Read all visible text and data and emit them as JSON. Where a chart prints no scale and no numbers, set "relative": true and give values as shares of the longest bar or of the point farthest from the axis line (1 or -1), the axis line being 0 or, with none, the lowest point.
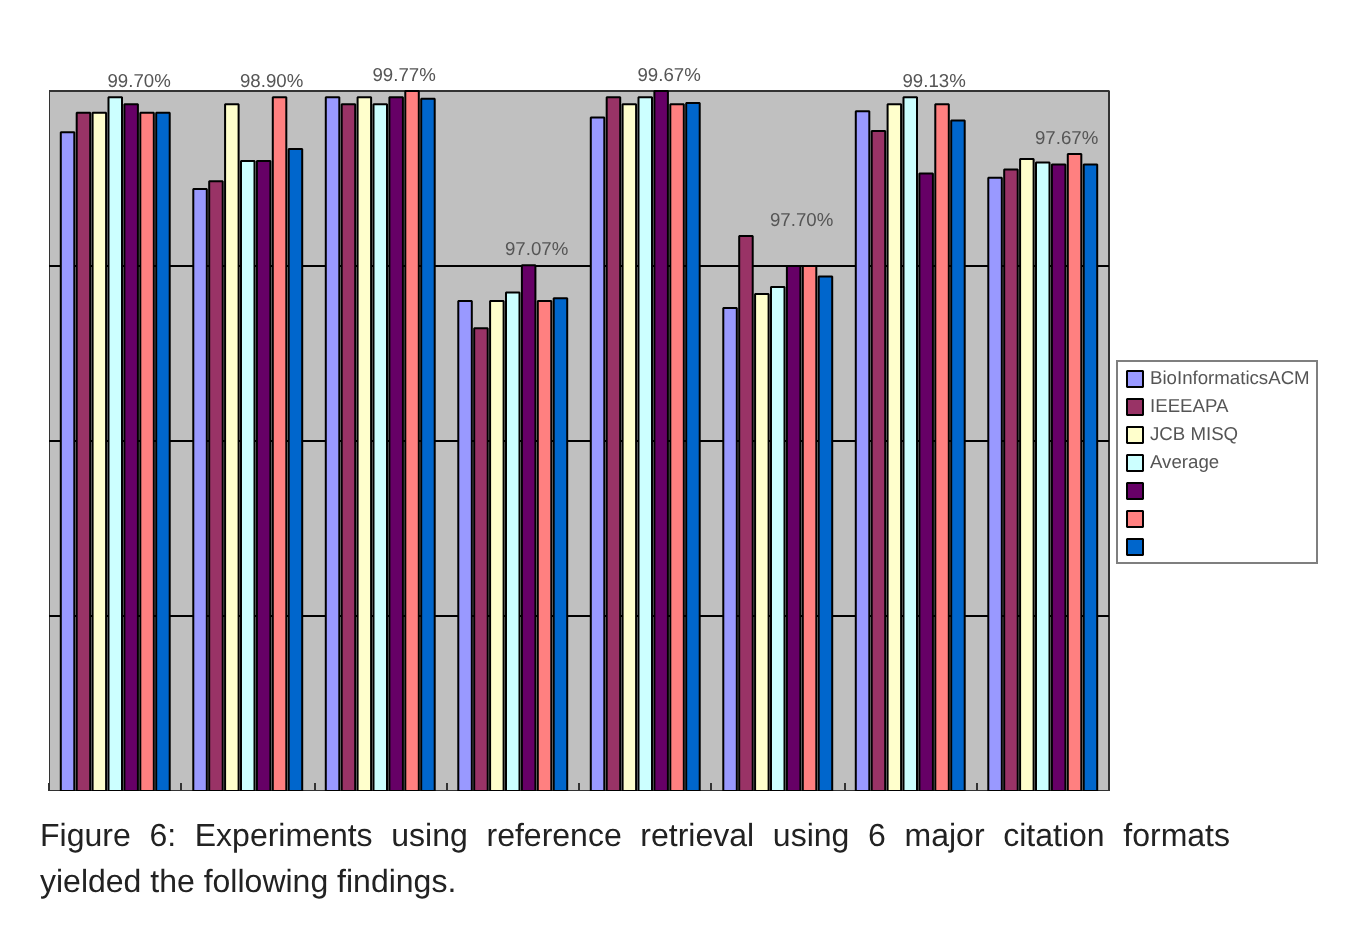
{
  "chart_data": {
    "type": "bar",
    "relative": true,
    "grid": "y",
    "legend": "right",
    "categories": [
      null,
      null,
      null,
      null,
      null,
      null,
      null,
      null
    ],
    "series": [
      {
        "name": "BioInformaticsACM",
        "color": "#9999ff",
        "values": [
          0.941,
          0.86,
          0.991,
          0.7,
          0.962,
          0.69,
          0.971,
          0.876
        ]
      },
      {
        "name": "IEEEAPA",
        "color": "#993366",
        "values": [
          0.969,
          0.871,
          0.981,
          0.661,
          0.991,
          0.793,
          0.943,
          0.888
        ]
      },
      {
        "name": "JCB MISQ",
        "color": "#ffffcc",
        "values": [
          0.969,
          0.981,
          0.991,
          0.7,
          0.981,
          0.71,
          0.981,
          0.903
        ]
      },
      {
        "name": "Average",
        "color": "#ccffff",
        "values": [
          0.991,
          0.9,
          0.981,
          0.712,
          0.991,
          0.72,
          0.991,
          0.898
        ]
      },
      {
        "color": "#660066",
        "values": [
          0.981,
          0.9,
          0.991,
          0.751,
          1.0,
          0.75,
          0.882,
          0.895
        ]
      },
      {
        "color": "#ff8080",
        "values": [
          0.969,
          0.991,
          1.0,
          0.7,
          0.981,
          0.75,
          0.981,
          0.91
        ]
      },
      {
        "color": "#0066cc",
        "values": [
          0.969,
          0.917,
          0.989,
          0.704,
          0.983,
          0.735,
          0.958,
          0.895
        ]
      }
    ],
    "annotations": [
      "99.70%",
      "98.90%",
      "99.77%",
      "97.07%",
      "99.67%",
      "97.70%",
      "99.13%",
      "97.67%",
      "Figure 6: Experiments using reference retrieval using 6 major citation formats yielded the following findings."
    ]
  }
}
